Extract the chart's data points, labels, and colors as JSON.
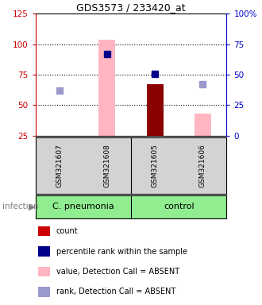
{
  "title": "GDS3573 / 233420_at",
  "samples": [
    "GSM321607",
    "GSM321608",
    "GSM321605",
    "GSM321606"
  ],
  "x_positions": [
    0,
    1,
    2,
    3
  ],
  "ylim_left": [
    25,
    125
  ],
  "ylim_right": [
    0,
    100
  ],
  "yticks_left": [
    25,
    50,
    75,
    100,
    125
  ],
  "yticks_right": [
    0,
    25,
    50,
    75,
    100
  ],
  "ytick_labels_right": [
    "0",
    "25",
    "50",
    "75",
    "100%"
  ],
  "bar_values_pink": [
    null,
    104,
    null,
    43
  ],
  "bar_values_red": [
    null,
    null,
    67,
    null
  ],
  "dot_rank_absent": [
    62,
    null,
    null,
    67
  ],
  "dot_rank_present": [
    null,
    92,
    76,
    null
  ],
  "colors": {
    "red_bar": "#8b0000",
    "pink_bar": "#ffb6c1",
    "blue_dot_dark": "#00008b",
    "blue_dot_light": "#9999cc",
    "left_axis": "#cc0000",
    "right_axis": "#0000cc",
    "sample_bg": "#d3d3d3",
    "group_bg": "#90ee90"
  },
  "group_names": [
    "C. pneumonia",
    "control"
  ],
  "group_divider": 1.5,
  "legend_items": [
    {
      "color": "#cc0000",
      "label": "count"
    },
    {
      "color": "#00008b",
      "label": "percentile rank within the sample"
    },
    {
      "color": "#ffb6c1",
      "label": "value, Detection Call = ABSENT"
    },
    {
      "color": "#9999cc",
      "label": "rank, Detection Call = ABSENT"
    }
  ],
  "bar_width": 0.35,
  "grid_lines": [
    50,
    75,
    100
  ],
  "xlim": [
    -0.5,
    3.5
  ]
}
